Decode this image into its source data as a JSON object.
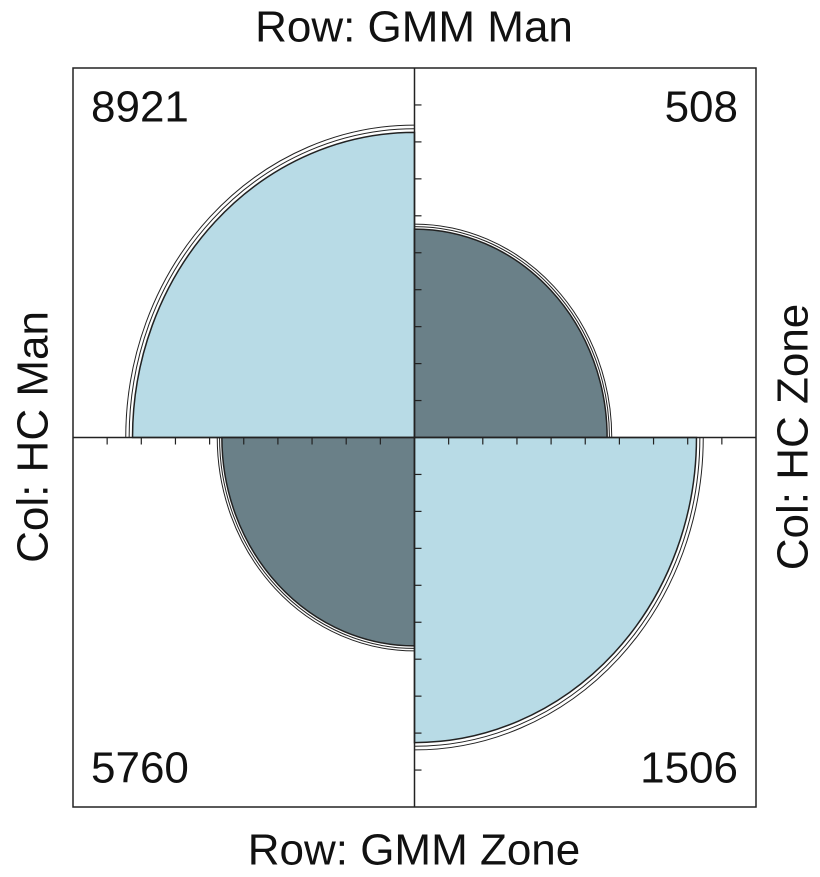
{
  "chart_data": {
    "type": "fourfold",
    "top_label": "Row: GMM Man",
    "bottom_label": "Row: GMM Zone",
    "left_label": "Col: HC Man",
    "right_label": "Col: HC Zone",
    "values": [
      8921,
      508,
      5760,
      1506
    ],
    "colors": [
      "#b8dbe6",
      "#6a8088",
      "#6a8088",
      "#b8dbe6"
    ]
  }
}
